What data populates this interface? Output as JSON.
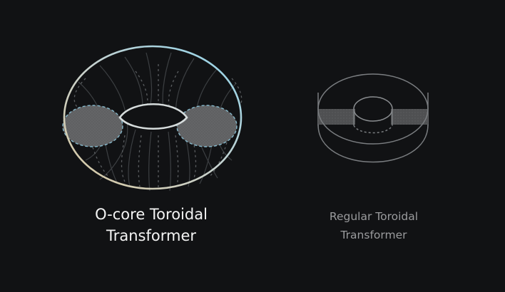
{
  "figures": [
    {
      "caption_line1": "O-core Toroidal",
      "caption_line2": "Transformer"
    },
    {
      "caption_line1": "Regular Toroidal",
      "caption_line2": "Transformer"
    }
  ],
  "colors": {
    "background": "#111214",
    "outline_gradient_start": "#d8c9a2",
    "outline_gradient_end": "#8fd3ea",
    "cross_section": "#6a6b6d",
    "cross_section_edge": "#7fb4c8",
    "grid_line": "#3f4245",
    "small_outline": "#7c7f82"
  }
}
